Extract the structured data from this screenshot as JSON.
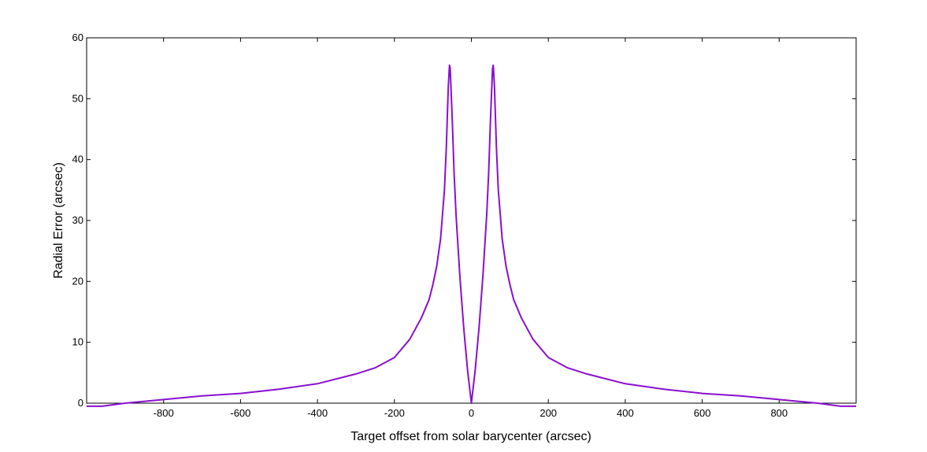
{
  "chart_data": {
    "type": "line",
    "title": "",
    "xlabel": "Target offset from solar barycenter (arcsec)",
    "ylabel": "Radial Error (arcsec)",
    "xlim": [
      -1000,
      1000
    ],
    "ylim": [
      0,
      60
    ],
    "x_ticks": [
      -800,
      -600,
      -400,
      -200,
      0,
      200,
      400,
      600,
      800
    ],
    "y_ticks": [
      0,
      10,
      20,
      30,
      40,
      50,
      60
    ],
    "grid": false,
    "series": [
      {
        "color": "#8a0fcf",
        "x": [
          -1000,
          -960,
          -900,
          -800,
          -700,
          -600,
          -500,
          -400,
          -300,
          -250,
          -200,
          -160,
          -130,
          -110,
          -100,
          -90,
          -80,
          -70,
          -65,
          -60,
          -57,
          -55,
          -50,
          -45,
          -40,
          -30,
          -20,
          -10,
          0,
          10,
          20,
          30,
          40,
          45,
          50,
          55,
          57,
          60,
          65,
          70,
          80,
          90,
          100,
          110,
          130,
          160,
          200,
          250,
          300,
          400,
          500,
          600,
          700,
          800,
          900,
          960,
          1000
        ],
        "y": [
          -0.5,
          -0.5,
          0,
          0.6,
          1.2,
          1.6,
          2.3,
          3.2,
          4.8,
          5.8,
          7.5,
          10.5,
          14.0,
          17.0,
          19.5,
          22.5,
          27.0,
          35.0,
          42.0,
          52.0,
          55.5,
          55.0,
          47.0,
          38.0,
          31.0,
          21.0,
          12.5,
          5.5,
          0,
          5.5,
          12.5,
          21.0,
          31.0,
          38.0,
          47.0,
          55.0,
          55.5,
          52.0,
          42.0,
          35.0,
          27.0,
          22.5,
          19.5,
          17.0,
          14.0,
          10.5,
          7.5,
          5.8,
          4.8,
          3.2,
          2.3,
          1.6,
          1.2,
          0.6,
          0,
          -0.5,
          -0.5
        ]
      }
    ]
  }
}
